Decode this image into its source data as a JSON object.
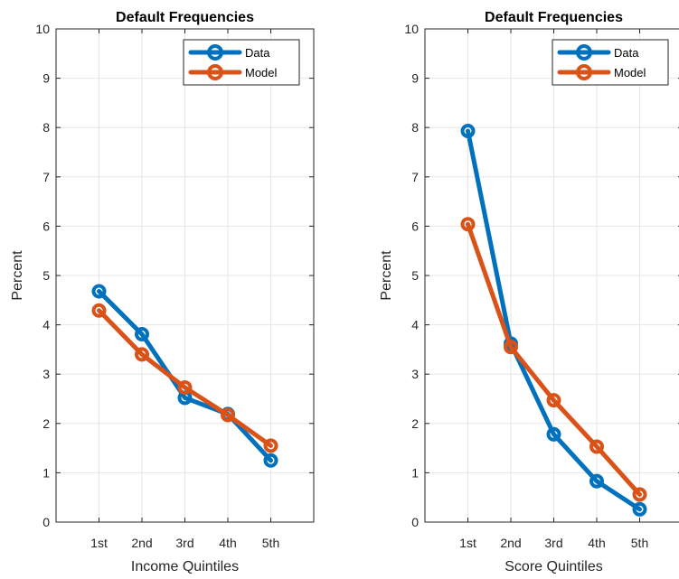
{
  "chart_data": [
    {
      "type": "line",
      "title": "Default Frequencies",
      "xlabel": "Income Quintiles",
      "ylabel": "Percent",
      "categories": [
        "1st",
        "2nd",
        "3rd",
        "4th",
        "5th"
      ],
      "ylim": [
        0,
        10
      ],
      "yticks": [
        0,
        1,
        2,
        3,
        4,
        5,
        6,
        7,
        8,
        9,
        10
      ],
      "grid": true,
      "legend_position": "top-right",
      "series": [
        {
          "name": "Data",
          "color": "#0072BD",
          "values": [
            4.68,
            3.81,
            2.52,
            2.19,
            1.25
          ]
        },
        {
          "name": "Model",
          "color": "#D95319",
          "values": [
            4.29,
            3.4,
            2.73,
            2.17,
            1.55
          ]
        }
      ]
    },
    {
      "type": "line",
      "title": "Default Frequencies",
      "xlabel": "Score Quintiles",
      "ylabel": "Percent",
      "categories": [
        "1st",
        "2nd",
        "3rd",
        "4th",
        "5th"
      ],
      "ylim": [
        0,
        10
      ],
      "yticks": [
        0,
        1,
        2,
        3,
        4,
        5,
        6,
        7,
        8,
        9,
        10
      ],
      "grid": true,
      "legend_position": "top-right",
      "series": [
        {
          "name": "Data",
          "color": "#0072BD",
          "values": [
            7.93,
            3.62,
            1.78,
            0.83,
            0.26
          ]
        },
        {
          "name": "Model",
          "color": "#D95319",
          "values": [
            6.04,
            3.55,
            2.47,
            1.53,
            0.56
          ]
        }
      ]
    }
  ]
}
